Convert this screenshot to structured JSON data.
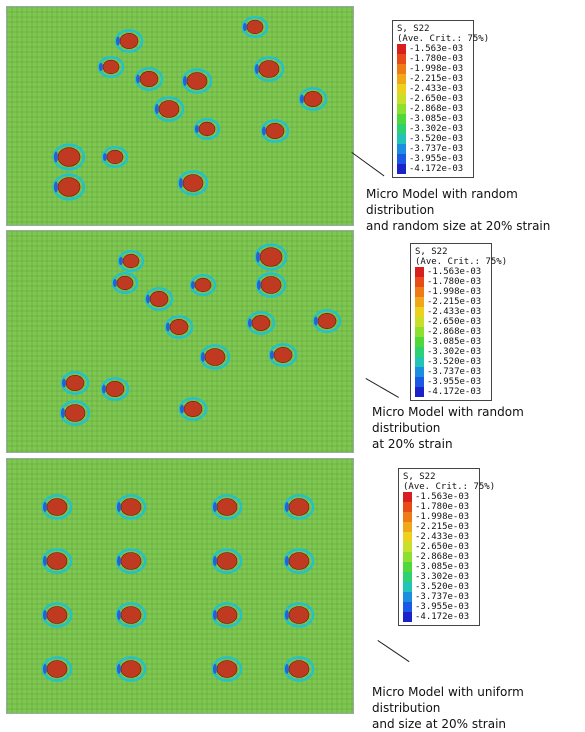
{
  "colors": {
    "background": "#7ec850",
    "mesh": "#2e4d22",
    "band_yellow": "#d9d24a",
    "band_orange": "#d99a36",
    "hot_red": "#c03a22",
    "cold_blue": "#2a5fd0",
    "cyan": "#22c3c8"
  },
  "panels": [
    {
      "caption_line1": "Micro Model with random distribution",
      "caption_line2": "and random size at 20% strain",
      "legend": {
        "title": "S, S22",
        "subtitle": "(Ave. Crit.: 75%)",
        "values": [
          "-1.563e-03",
          "-1.780e-03",
          "-1.998e-03",
          "-2.215e-03",
          "-2.433e-03",
          "-2.650e-03",
          "-2.868e-03",
          "-3.085e-03",
          "-3.302e-03",
          "-3.520e-03",
          "-3.737e-03",
          "-3.955e-03",
          "-4.172e-03"
        ]
      }
    },
    {
      "caption_line1": "Micro Model with random distribution",
      "caption_line2": "at 20% strain",
      "legend": {
        "title": "S, S22",
        "subtitle": "(Ave. Crit.: 75%)",
        "values": [
          "-1.563e-03",
          "-1.780e-03",
          "-1.998e-03",
          "-2.215e-03",
          "-2.433e-03",
          "-2.650e-03",
          "-2.868e-03",
          "-3.085e-03",
          "-3.302e-03",
          "-3.520e-03",
          "-3.737e-03",
          "-3.955e-03",
          "-4.172e-03"
        ]
      }
    },
    {
      "caption_line1": "Micro Model with uniform distribution",
      "caption_line2": "and size at 20% strain",
      "legend": {
        "title": "S, S22",
        "subtitle": "(Ave. Crit.: 75%)",
        "values": [
          "-1.563e-03",
          "-1.780e-03",
          "-1.998e-03",
          "-2.215e-03",
          "-2.433e-03",
          "-2.650e-03",
          "-2.868e-03",
          "-3.085e-03",
          "-3.302e-03",
          "-3.520e-03",
          "-3.737e-03",
          "-3.955e-03",
          "-4.172e-03"
        ]
      }
    }
  ],
  "legend_colors": [
    "#d81e1e",
    "#e64b18",
    "#ee7a18",
    "#f0a818",
    "#ecd21c",
    "#c8e02a",
    "#8ee030",
    "#4ed83a",
    "#2ed074",
    "#22c3b8",
    "#1c8ee0",
    "#1c58e6",
    "#1a22c8"
  ]
}
